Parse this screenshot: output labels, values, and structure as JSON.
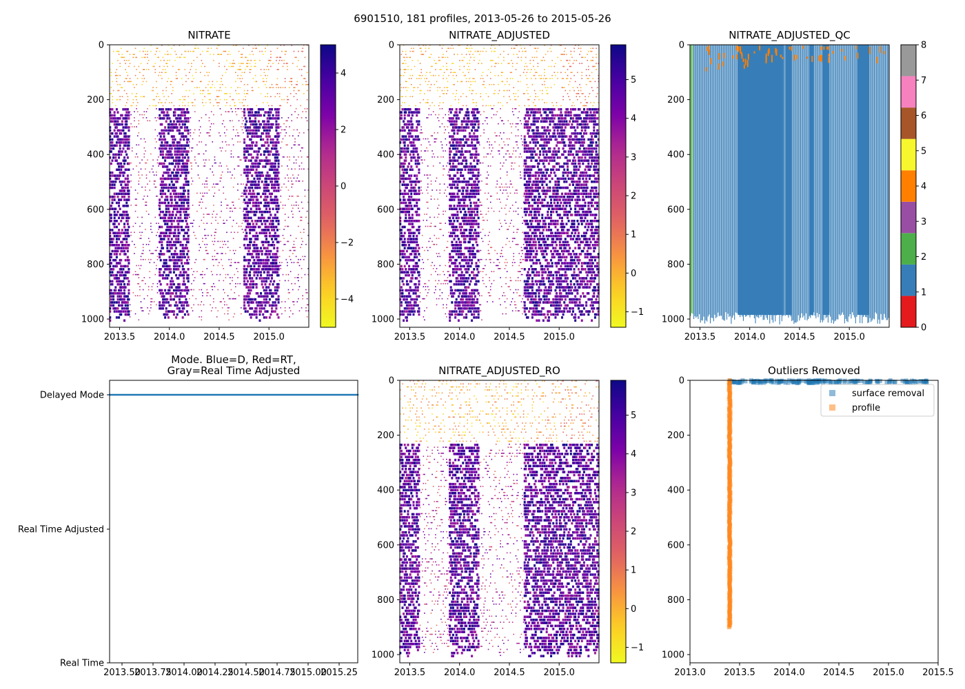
{
  "figure_title": "6901510, 181 profiles, 2013-05-26 to 2015-05-26",
  "chart_data": [
    {
      "id": "nitrate",
      "type": "heatmap",
      "title": "NITRATE",
      "xlim": [
        2013.4,
        2015.4
      ],
      "ylim": [
        1030,
        0
      ],
      "xticks": [
        2013.5,
        2014.0,
        2014.5,
        2015.0
      ],
      "xtick_labels": [
        "2013.5",
        "2014.0",
        "2014.5",
        "2015.0"
      ],
      "yticks": [
        0,
        200,
        400,
        600,
        800,
        1000
      ],
      "ytick_labels": [
        "0",
        "200",
        "400",
        "600",
        "800",
        "1000"
      ],
      "colorbar": {
        "cmap": "plasma_r",
        "range": [
          -5,
          5
        ],
        "ticks": [
          -4,
          -2,
          0,
          2,
          4
        ],
        "tick_labels": [
          "−4",
          "−2",
          "0",
          "2",
          "4"
        ]
      },
      "dense_intervals": [
        [
          2013.4,
          2013.6
        ],
        [
          2013.9,
          2014.2
        ],
        [
          2014.75,
          2015.1
        ]
      ],
      "max_depth": 1000
    },
    {
      "id": "nitrate-adjusted",
      "type": "heatmap",
      "title": "NITRATE_ADJUSTED",
      "xlim": [
        2013.4,
        2015.4
      ],
      "ylim": [
        1030,
        0
      ],
      "xticks": [
        2013.5,
        2014.0,
        2014.5,
        2015.0
      ],
      "xtick_labels": [
        "2013.5",
        "2014.0",
        "2014.5",
        "2015.0"
      ],
      "yticks": [
        0,
        200,
        400,
        600,
        800,
        1000
      ],
      "ytick_labels": [
        "0",
        "200",
        "400",
        "600",
        "800",
        "1000"
      ],
      "colorbar": {
        "cmap": "plasma_r",
        "range": [
          -1.4,
          5.9
        ],
        "ticks": [
          -1,
          0,
          1,
          2,
          3,
          4,
          5
        ],
        "tick_labels": [
          "−1",
          "0",
          "1",
          "2",
          "3",
          "4",
          "5"
        ]
      },
      "dense_intervals": [
        [
          2013.4,
          2013.6
        ],
        [
          2013.9,
          2014.2
        ],
        [
          2014.65,
          2015.4
        ]
      ],
      "max_depth": 1000
    },
    {
      "id": "nitrate-adjusted-qc",
      "type": "heatmap",
      "title": "NITRATE_ADJUSTED_QC",
      "xlim": [
        2013.4,
        2015.4
      ],
      "ylim": [
        1030,
        0
      ],
      "xticks": [
        2013.5,
        2014.0,
        2014.5,
        2015.0
      ],
      "xtick_labels": [
        "2013.5",
        "2014.0",
        "2014.5",
        "2015.0"
      ],
      "yticks": [
        0,
        200,
        400,
        600,
        800,
        1000
      ],
      "ytick_labels": [
        "0",
        "200",
        "400",
        "600",
        "800",
        "1000"
      ],
      "colorbar": {
        "cmap": "Set1",
        "range": [
          0,
          8
        ],
        "ticks": [
          0,
          1,
          2,
          3,
          4,
          5,
          6,
          7,
          8
        ],
        "tick_labels": [
          "0",
          "1",
          "2",
          "3",
          "4",
          "5",
          "6",
          "7",
          "8"
        ],
        "colors": [
          "#e41a1c",
          "#377eb8",
          "#4daf4a",
          "#984ea3",
          "#ff7f00",
          "#f7f72e",
          "#a65628",
          "#f781bf",
          "#999999"
        ]
      },
      "qc_blocks": [
        [
          2013.88,
          2014.34
        ],
        [
          2014.36,
          2014.42
        ],
        [
          2014.6,
          2014.64
        ],
        [
          2014.73,
          2014.8
        ],
        [
          2015.08,
          2015.2
        ]
      ],
      "max_depth": 1000
    },
    {
      "id": "mode",
      "type": "scatter",
      "title": "Mode. Blue=D, Red=RT,\nGray=Real Time Adjusted",
      "title_lines": [
        "Mode. Blue=D, Red=RT,",
        "Gray=Real Time Adjusted"
      ],
      "xlim": [
        2013.4,
        2015.4
      ],
      "xticks": [
        2013.5,
        2013.75,
        2014.0,
        2014.25,
        2014.5,
        2014.75,
        2015.0,
        2015.25
      ],
      "xtick_labels": [
        "2013.50",
        "2013.75",
        "2014.00",
        "2014.25",
        "2014.50",
        "2014.75",
        "2015.00",
        "2015.25"
      ],
      "categories": [
        "Real Time",
        "Real Time Adjusted",
        "Delayed Mode"
      ],
      "series": [
        {
          "name": "Delayed Mode",
          "x_range": [
            2013.4,
            2015.4
          ],
          "profiles": 181,
          "color": "#1f77b4"
        }
      ]
    },
    {
      "id": "nitrate-adjusted-ro",
      "type": "heatmap",
      "title": "NITRATE_ADJUSTED_RO",
      "xlim": [
        2013.4,
        2015.4
      ],
      "ylim": [
        1030,
        0
      ],
      "xticks": [
        2013.5,
        2014.0,
        2014.5,
        2015.0
      ],
      "xtick_labels": [
        "2013.5",
        "2014.0",
        "2014.5",
        "2015.0"
      ],
      "yticks": [
        0,
        200,
        400,
        600,
        800,
        1000
      ],
      "ytick_labels": [
        "0",
        "200",
        "400",
        "600",
        "800",
        "1000"
      ],
      "colorbar": {
        "cmap": "plasma_r",
        "range": [
          -1.4,
          5.9
        ],
        "ticks": [
          -1,
          0,
          1,
          2,
          3,
          4,
          5
        ],
        "tick_labels": [
          "−1",
          "0",
          "1",
          "2",
          "3",
          "4",
          "5"
        ]
      },
      "dense_intervals": [
        [
          2013.4,
          2013.6
        ],
        [
          2013.9,
          2014.2
        ],
        [
          2014.65,
          2015.4
        ]
      ],
      "max_depth": 1000
    },
    {
      "id": "outliers",
      "type": "scatter",
      "title": "Outliers Removed",
      "xlim": [
        2013.0,
        2015.5
      ],
      "ylim": [
        1030,
        0
      ],
      "xticks": [
        2013.0,
        2013.5,
        2014.0,
        2014.5,
        2015.0,
        2015.5
      ],
      "xtick_labels": [
        "2013.0",
        "2013.5",
        "2014.0",
        "2014.5",
        "2015.0",
        "2015.5"
      ],
      "yticks": [
        0,
        200,
        400,
        600,
        800,
        1000
      ],
      "ytick_labels": [
        "0",
        "200",
        "400",
        "600",
        "800",
        "1000"
      ],
      "legend": {
        "position": "top-right",
        "entries": [
          "surface removal",
          "profile"
        ]
      },
      "series": [
        {
          "name": "surface removal",
          "color": "#1f77b4",
          "x_range": [
            2013.4,
            2015.4
          ],
          "depth_range": [
            0,
            10
          ]
        },
        {
          "name": "profile",
          "color": "#ff7f0e",
          "x": 2013.4,
          "depth_range": [
            0,
            900
          ]
        }
      ]
    }
  ]
}
